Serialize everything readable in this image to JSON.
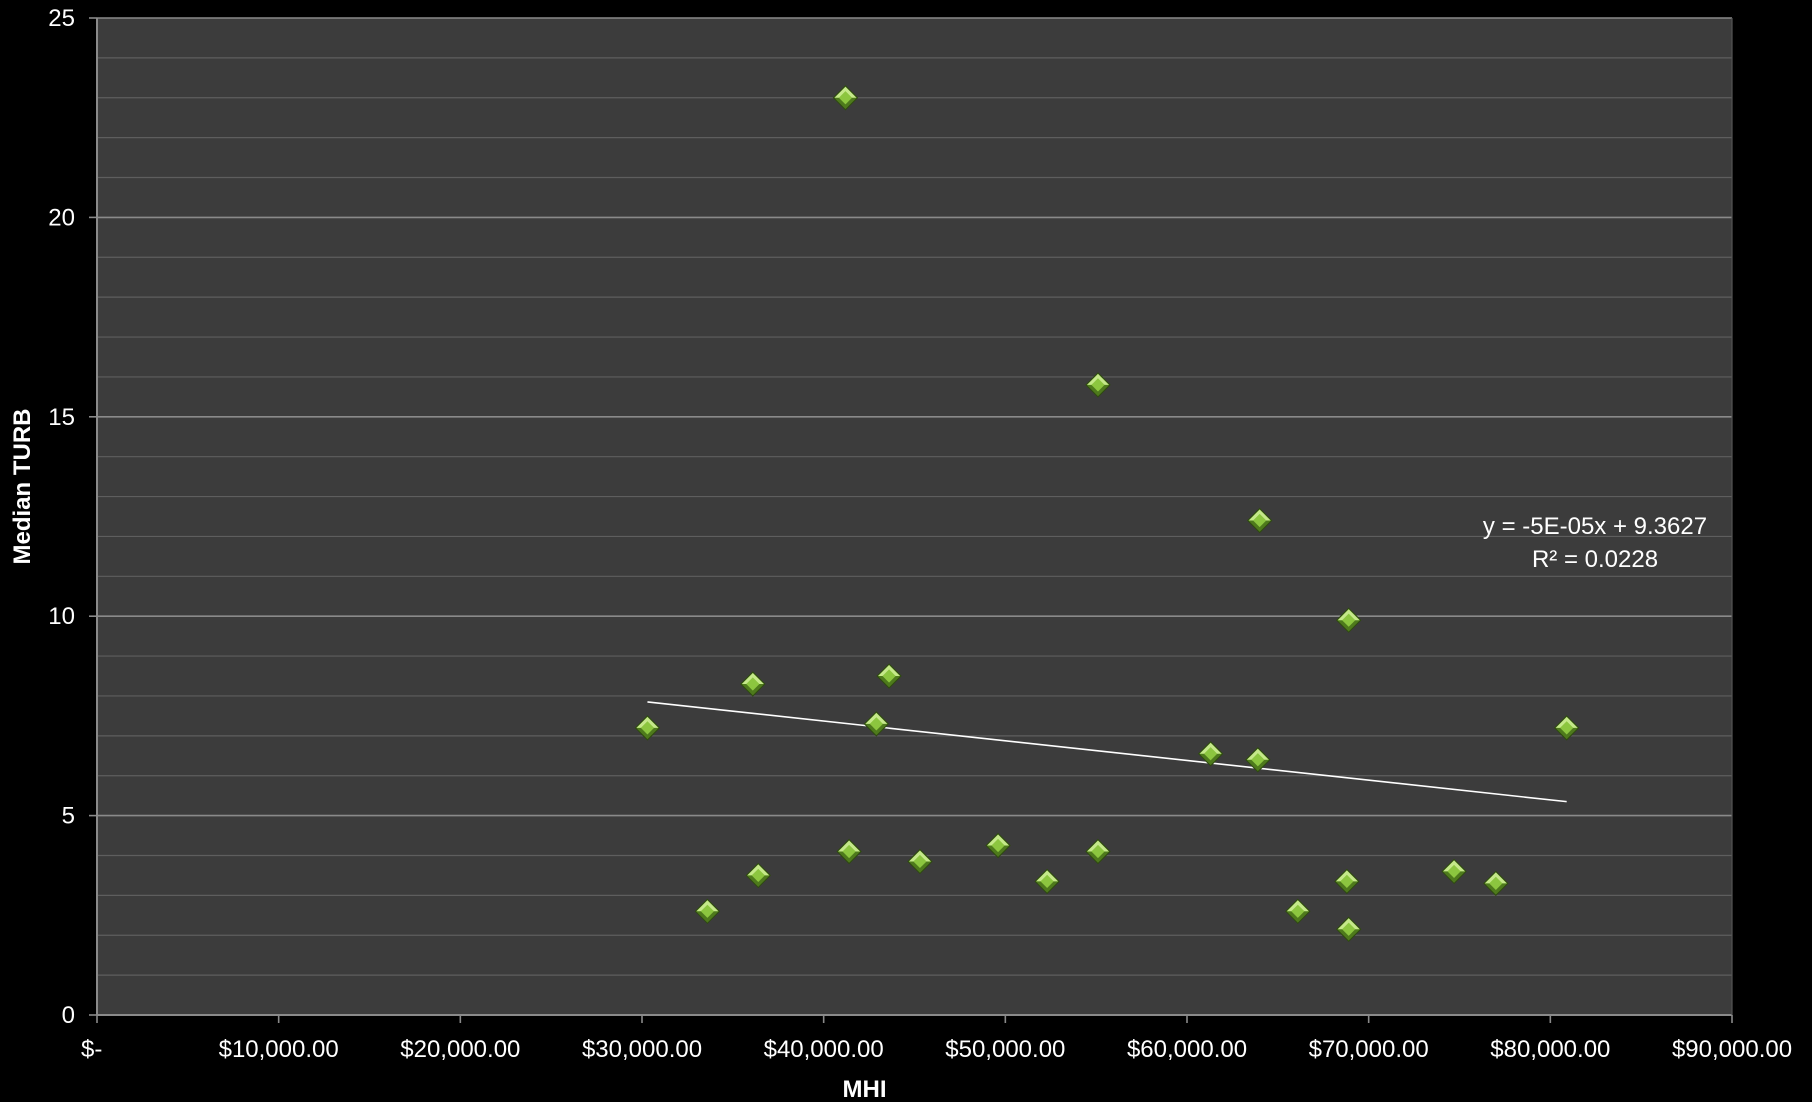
{
  "chart_data": {
    "type": "scatter",
    "title": "",
    "xlabel": "MHI",
    "ylabel": "Median TURB",
    "xlim": [
      0,
      90000
    ],
    "ylim": [
      0,
      25
    ],
    "x_ticks": [
      {
        "value": 0,
        "label": "$-"
      },
      {
        "value": 10000,
        "label": "$10,000.00"
      },
      {
        "value": 20000,
        "label": "$20,000.00"
      },
      {
        "value": 30000,
        "label": "$30,000.00"
      },
      {
        "value": 40000,
        "label": "$40,000.00"
      },
      {
        "value": 50000,
        "label": "$50,000.00"
      },
      {
        "value": 60000,
        "label": "$60,000.00"
      },
      {
        "value": 70000,
        "label": "$70,000.00"
      },
      {
        "value": 80000,
        "label": "$80,000.00"
      },
      {
        "value": 90000,
        "label": "$90,000.00"
      }
    ],
    "y_ticks": [
      {
        "value": 0,
        "label": "0"
      },
      {
        "value": 5,
        "label": "5"
      },
      {
        "value": 10,
        "label": "10"
      },
      {
        "value": 15,
        "label": "15"
      },
      {
        "value": 20,
        "label": "20"
      },
      {
        "value": 25,
        "label": "25"
      }
    ],
    "minor_y_step": 1,
    "grid": true,
    "colors": {
      "background": "#000000",
      "plot_area": "#3c3c3c",
      "major_grid": "#8a8a8a",
      "minor_grid": "#5e5e5e",
      "marker": "#8cc63f",
      "marker_highlight": "#c5e88a",
      "marker_shadow": "#4e7a1c",
      "trendline": "#ffffff",
      "text": "#ffffff"
    },
    "series": [
      {
        "marker": "diamond",
        "points": [
          {
            "x": 30300,
            "y": 7.2
          },
          {
            "x": 33600,
            "y": 2.6
          },
          {
            "x": 36100,
            "y": 8.3
          },
          {
            "x": 36400,
            "y": 3.5
          },
          {
            "x": 41200,
            "y": 23.0
          },
          {
            "x": 41400,
            "y": 4.1
          },
          {
            "x": 42900,
            "y": 7.3
          },
          {
            "x": 43600,
            "y": 8.5
          },
          {
            "x": 45300,
            "y": 3.85
          },
          {
            "x": 49600,
            "y": 4.25
          },
          {
            "x": 52300,
            "y": 3.35
          },
          {
            "x": 55100,
            "y": 15.8
          },
          {
            "x": 55100,
            "y": 4.1
          },
          {
            "x": 61300,
            "y": 6.55
          },
          {
            "x": 64000,
            "y": 12.4
          },
          {
            "x": 63900,
            "y": 6.4
          },
          {
            "x": 66100,
            "y": 2.6
          },
          {
            "x": 68900,
            "y": 9.9
          },
          {
            "x": 68800,
            "y": 3.35
          },
          {
            "x": 68900,
            "y": 2.15
          },
          {
            "x": 74700,
            "y": 3.6
          },
          {
            "x": 77000,
            "y": 3.3
          },
          {
            "x": 80900,
            "y": 7.2
          }
        ]
      }
    ],
    "trendline": {
      "type": "linear",
      "x_range": [
        30300,
        80900
      ],
      "y_range": [
        7.85,
        5.35
      ],
      "equation": "y = -5E-05x + 9.3627",
      "r_squared": "R² = 0.0228"
    }
  }
}
